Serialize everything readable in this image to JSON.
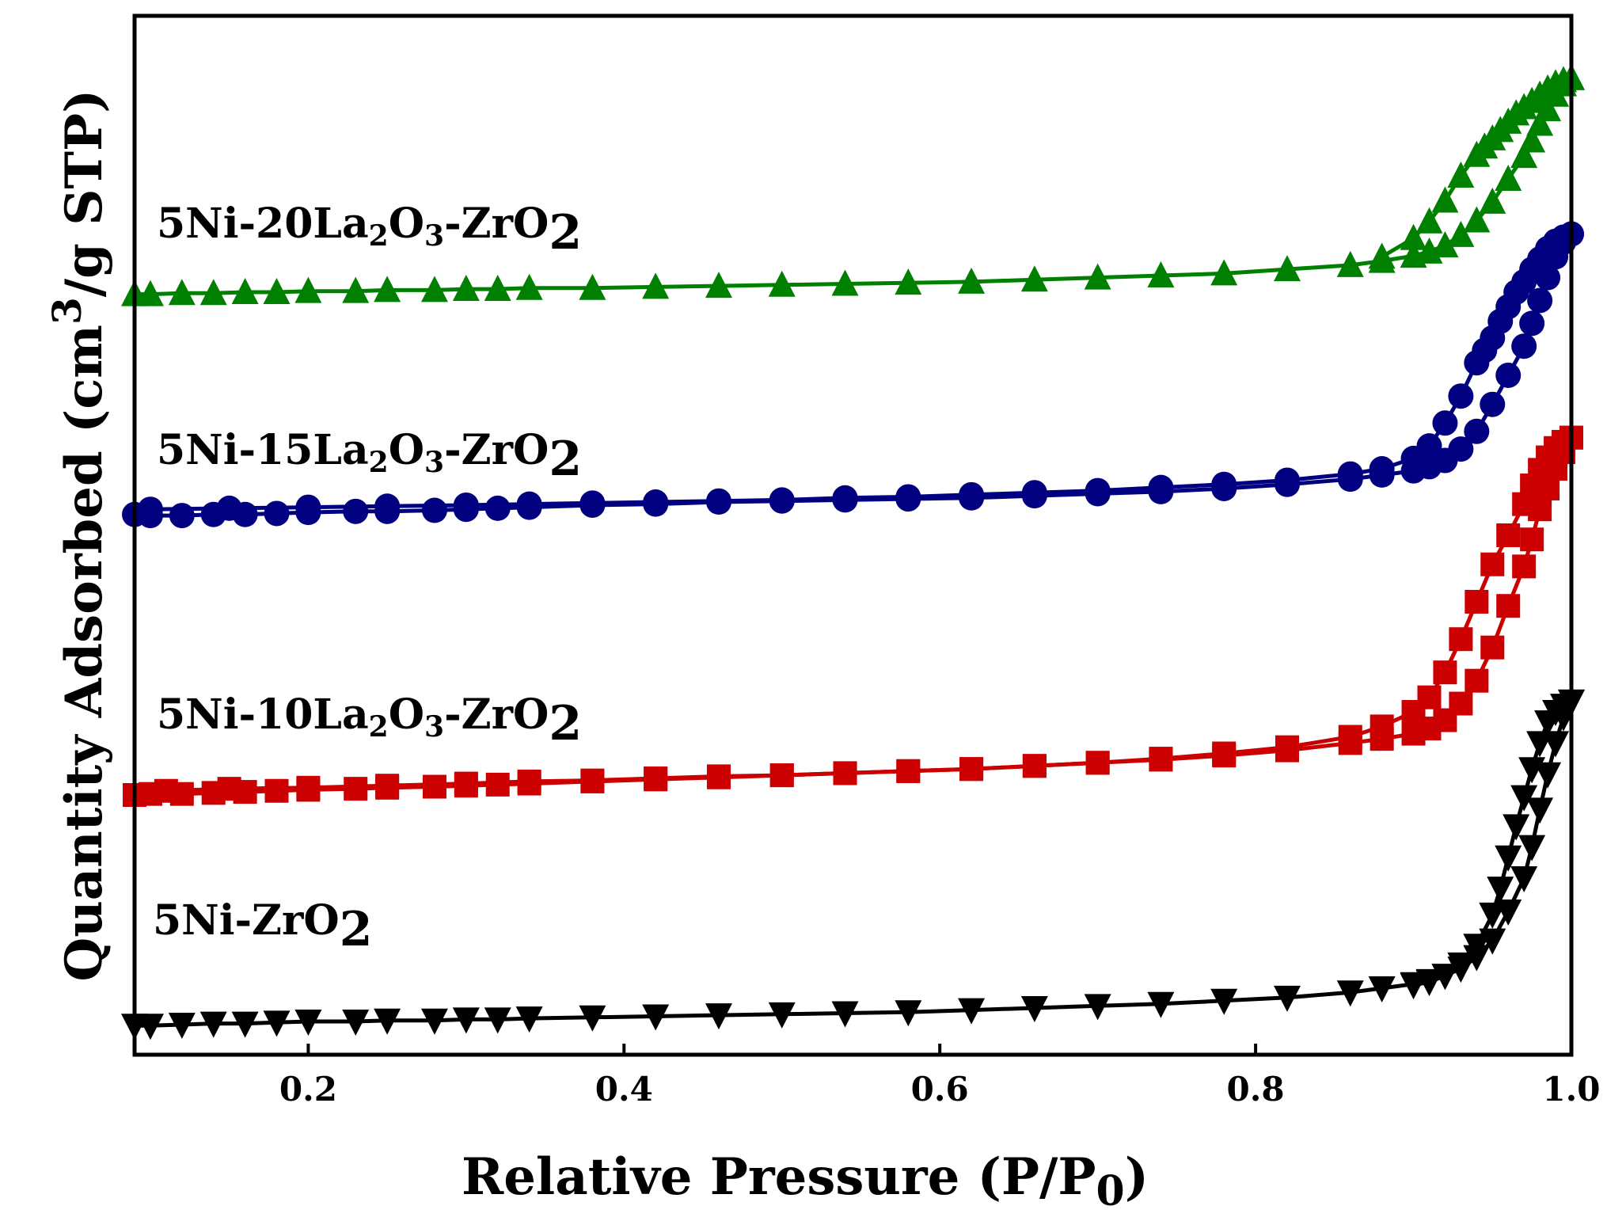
{
  "chart_data": {
    "type": "line",
    "title": "",
    "xlabel": "Relative Pressure (P/P0)",
    "ylabel": "Quantity Adsorbed (cm3/g STP)",
    "xlim": [
      0.09,
      1.0
    ],
    "ylim": [
      0,
      100
    ],
    "x_ticks": [
      "0.2",
      "0.4",
      "0.6",
      "0.8",
      "1.0"
    ],
    "x_tick_values": [
      0.2,
      0.4,
      0.6,
      0.8,
      1.0
    ],
    "y_ticks_shown": false,
    "grid": false,
    "legend": "inline labels on left",
    "series": [
      {
        "name": "5Ni-ZrO2",
        "label_base": "5Ni-ZrO",
        "label_sub": "2",
        "color": "#000000",
        "marker": "triangle-down",
        "adsorption": {
          "x": [
            0.09,
            0.1,
            0.12,
            0.14,
            0.16,
            0.18,
            0.2,
            0.23,
            0.25,
            0.28,
            0.3,
            0.32,
            0.34,
            0.38,
            0.42,
            0.46,
            0.5,
            0.54,
            0.58,
            0.62,
            0.66,
            0.7,
            0.74,
            0.78,
            0.82,
            0.86,
            0.88,
            0.9,
            0.91,
            0.92,
            0.93,
            0.94,
            0.95,
            0.96,
            0.97,
            0.975,
            0.98,
            0.985,
            0.99,
            0.995,
            1.0
          ],
          "y": [
            2.8,
            2.8,
            2.9,
            3.0,
            3.0,
            3.1,
            3.2,
            3.2,
            3.3,
            3.3,
            3.4,
            3.4,
            3.5,
            3.6,
            3.7,
            3.8,
            3.9,
            4.0,
            4.1,
            4.3,
            4.5,
            4.7,
            4.9,
            5.2,
            5.5,
            6.0,
            6.4,
            6.8,
            7.1,
            7.6,
            8.3,
            9.4,
            11.0,
            13.8,
            17.0,
            20.0,
            23.6,
            27.0,
            30.0,
            32.5,
            34.0
          ]
        },
        "desorption": {
          "x": [
            1.0,
            0.995,
            0.99,
            0.985,
            0.98,
            0.975,
            0.97,
            0.965,
            0.96,
            0.955,
            0.95,
            0.94,
            0.93,
            0.92,
            0.91,
            0.9
          ],
          "y": [
            34.0,
            33.6,
            33.0,
            32.0,
            30.0,
            27.5,
            24.8,
            22.0,
            19.0,
            16.0,
            13.5,
            10.5,
            8.7,
            7.6,
            7.0,
            6.7
          ]
        }
      },
      {
        "name": "5Ni-10La2O3-ZrO2",
        "label_base": "5Ni-10La",
        "label_sub1": "2",
        "label_mid": "O",
        "label_sub2": "3",
        "label_tail": "-ZrO",
        "label_sub3": "2",
        "color": "#cc0000",
        "marker": "square",
        "adsorption": {
          "x": [
            0.09,
            0.1,
            0.12,
            0.14,
            0.16,
            0.18,
            0.2,
            0.23,
            0.25,
            0.28,
            0.3,
            0.32,
            0.34,
            0.38,
            0.42,
            0.46,
            0.5,
            0.54,
            0.58,
            0.62,
            0.66,
            0.7,
            0.74,
            0.78,
            0.82,
            0.86,
            0.88,
            0.9,
            0.91,
            0.92,
            0.93,
            0.94,
            0.95,
            0.96,
            0.97,
            0.975,
            0.98,
            0.985,
            0.99,
            0.995,
            1.0
          ],
          "y": [
            25.0,
            25.1,
            25.1,
            25.2,
            25.3,
            25.4,
            25.5,
            25.6,
            25.7,
            25.8,
            25.9,
            26.0,
            26.1,
            26.3,
            26.5,
            26.7,
            26.9,
            27.1,
            27.3,
            27.5,
            27.8,
            28.1,
            28.4,
            28.8,
            29.3,
            30.0,
            30.4,
            30.9,
            31.4,
            32.2,
            33.8,
            36.0,
            39.2,
            43.2,
            47.0,
            49.6,
            52.5,
            54.5,
            56.4,
            58.0,
            59.4
          ]
        },
        "desorption": {
          "x": [
            1.0,
            0.995,
            0.99,
            0.985,
            0.98,
            0.975,
            0.97,
            0.96,
            0.95,
            0.94,
            0.93,
            0.92,
            0.91,
            0.9,
            0.88,
            0.86,
            0.82,
            0.78,
            0.74,
            0.7,
            0.66,
            0.62,
            0.58,
            0.54,
            0.5,
            0.46,
            0.42,
            0.38,
            0.34,
            0.3,
            0.25,
            0.2,
            0.15,
            0.11
          ],
          "y": [
            59.4,
            59.0,
            58.4,
            57.5,
            56.3,
            54.8,
            53.0,
            50.0,
            47.2,
            43.6,
            40.0,
            36.8,
            34.4,
            33.0,
            31.6,
            30.6,
            29.6,
            29.0,
            28.5,
            28.1,
            27.8,
            27.5,
            27.3,
            27.1,
            26.9,
            26.8,
            26.6,
            26.4,
            26.3,
            26.1,
            25.9,
            25.7,
            25.6,
            25.4
          ]
        }
      },
      {
        "name": "5Ni-15La2O3-ZrO2",
        "label_base": "5Ni-15La",
        "label_sub1": "2",
        "label_mid": "O",
        "label_sub2": "3",
        "label_tail": "-ZrO",
        "label_sub3": "2",
        "color": "#000080",
        "marker": "circle",
        "adsorption": {
          "x": [
            0.09,
            0.1,
            0.12,
            0.14,
            0.16,
            0.18,
            0.2,
            0.23,
            0.25,
            0.28,
            0.3,
            0.32,
            0.34,
            0.38,
            0.42,
            0.46,
            0.5,
            0.54,
            0.58,
            0.62,
            0.66,
            0.7,
            0.74,
            0.78,
            0.82,
            0.86,
            0.88,
            0.9,
            0.91,
            0.92,
            0.93,
            0.94,
            0.95,
            0.96,
            0.97,
            0.975,
            0.98,
            0.985,
            0.99,
            0.995,
            1.0
          ],
          "y": [
            52.0,
            51.9,
            51.9,
            52.0,
            52.0,
            52.1,
            52.2,
            52.3,
            52.3,
            52.4,
            52.5,
            52.6,
            52.7,
            52.9,
            53.0,
            53.2,
            53.3,
            53.4,
            53.5,
            53.6,
            53.8,
            54.0,
            54.2,
            54.5,
            54.9,
            55.4,
            55.8,
            56.2,
            56.6,
            57.2,
            58.3,
            60.0,
            62.6,
            65.4,
            68.2,
            70.4,
            72.6,
            74.8,
            76.8,
            78.2,
            79.0
          ]
        },
        "desorption": {
          "x": [
            1.0,
            0.995,
            0.99,
            0.985,
            0.98,
            0.975,
            0.97,
            0.965,
            0.96,
            0.955,
            0.95,
            0.945,
            0.94,
            0.93,
            0.92,
            0.91,
            0.9,
            0.88,
            0.86,
            0.82,
            0.78,
            0.74,
            0.7,
            0.66,
            0.62,
            0.58,
            0.54,
            0.5,
            0.46,
            0.42,
            0.38,
            0.34,
            0.3,
            0.25,
            0.2,
            0.15,
            0.1
          ],
          "y": [
            79.0,
            78.7,
            78.3,
            77.6,
            76.6,
            75.6,
            74.4,
            73.4,
            72.0,
            70.6,
            69.0,
            67.8,
            66.6,
            63.4,
            60.8,
            58.6,
            57.4,
            56.4,
            55.9,
            55.3,
            54.9,
            54.6,
            54.3,
            54.1,
            53.9,
            53.7,
            53.6,
            53.4,
            53.3,
            53.2,
            53.1,
            53.0,
            52.9,
            52.8,
            52.7,
            52.6,
            52.5
          ]
        }
      },
      {
        "name": "5Ni-20La2O3-ZrO2",
        "label_base": "5Ni-20La",
        "label_sub1": "2",
        "label_mid": "O",
        "label_sub2": "3",
        "label_tail": "-ZrO",
        "label_sub3": "2",
        "color": "#008000",
        "marker": "triangle-up",
        "adsorption": {
          "x": [
            0.09,
            0.1,
            0.12,
            0.14,
            0.16,
            0.18,
            0.2,
            0.23,
            0.25,
            0.28,
            0.3,
            0.32,
            0.34,
            0.38,
            0.42,
            0.46,
            0.5,
            0.54,
            0.58,
            0.62,
            0.66,
            0.7,
            0.74,
            0.78,
            0.82,
            0.86,
            0.88,
            0.9,
            0.91,
            0.92,
            0.93,
            0.94,
            0.95,
            0.96,
            0.97,
            0.975,
            0.98,
            0.985,
            0.99,
            0.995,
            1.0
          ],
          "y": [
            73.2,
            73.2,
            73.3,
            73.3,
            73.4,
            73.4,
            73.5,
            73.5,
            73.6,
            73.6,
            73.7,
            73.7,
            73.8,
            73.8,
            73.9,
            74.0,
            74.1,
            74.2,
            74.3,
            74.4,
            74.6,
            74.8,
            75.0,
            75.2,
            75.6,
            76.0,
            76.4,
            76.9,
            77.3,
            77.9,
            78.9,
            80.3,
            82.1,
            84.3,
            86.5,
            88.0,
            89.6,
            91.0,
            92.4,
            93.4,
            94.0
          ]
        },
        "desorption": {
          "x": [
            1.0,
            0.995,
            0.99,
            0.985,
            0.98,
            0.975,
            0.97,
            0.965,
            0.96,
            0.955,
            0.95,
            0.945,
            0.94,
            0.93,
            0.92,
            0.91,
            0.9,
            0.88
          ],
          "y": [
            94.0,
            93.8,
            93.5,
            93.0,
            92.4,
            91.8,
            91.2,
            90.6,
            89.8,
            89.0,
            88.2,
            87.4,
            86.6,
            84.6,
            82.2,
            80.2,
            78.6,
            76.8
          ]
        }
      }
    ]
  },
  "axis_labels": {
    "x_main": "Relative Pressure (P/P",
    "x_sub": "0",
    "x_close": ")",
    "y_main": "Quantity Adsorbed (cm",
    "y_sup": "3",
    "y_tail": "/g STP)"
  }
}
